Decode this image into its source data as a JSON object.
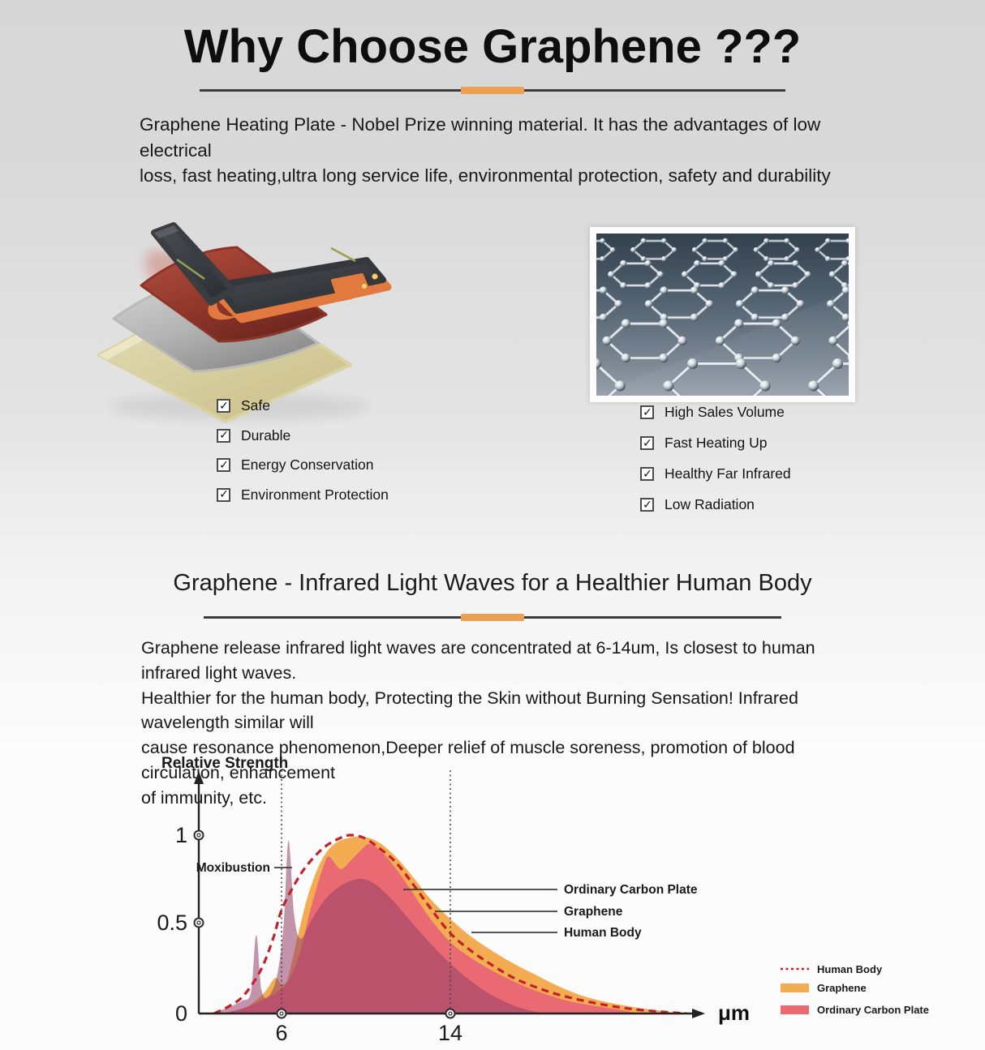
{
  "header": {
    "title": "Why Choose Graphene ???",
    "intro_lines": [
      "Graphene Heating Plate - Nobel Prize winning material.  It has the advantages of low electrical",
      "loss,  fast  heating,ultra long service life, environmental  protection, safety and durability"
    ]
  },
  "icons": {
    "check": "✓"
  },
  "theme": {
    "accent_orange": "#ECA052",
    "divider_dark": "#3C3C3C"
  },
  "features_left": {
    "items": [
      "Safe",
      "Durable",
      "Energy Conservation",
      "Environment Protection"
    ]
  },
  "features_right": {
    "items": [
      "High Sales Volume",
      "Fast Heating Up",
      "Healthy Far Infrared",
      "Low Radiation"
    ]
  },
  "section_infrared": {
    "title": "Graphene - Infrared Light Waves for a Healthier Human Body",
    "body_lines": [
      "Graphene release infrared light waves are concentrated  at 6-14um, Is closest to human infrared light waves.",
      "Healthier for the human body, Protecting the Skin  without Burning Sensation! Infrared wavelength similar will",
      "cause resonance phenomenon,Deeper relief of muscle  soreness, promotion of blood circulation, enhancement",
      "of immunity, etc."
    ]
  },
  "chart_data": {
    "type": "area",
    "ylabel": "Relative Strength",
    "x_unit": "μm",
    "x_ticks": [
      "6",
      "14"
    ],
    "y_ticks": [
      "0",
      "0.5",
      "1"
    ],
    "xlim_um": [
      2,
      26
    ],
    "ylim": [
      0,
      1.3
    ],
    "grid": "dotted guides at x=6 and x=14",
    "labels": {
      "moxibustion": "Moxibustion",
      "carbon": "Ordinary Carbon Plate",
      "graphene": "Graphene",
      "human": "Human Body"
    },
    "series": [
      {
        "key": "graphene",
        "name": "Graphene",
        "color": "#F4AC53",
        "style": "filled-area",
        "points": [
          [
            3.5,
            0
          ],
          [
            4.4,
            0.04
          ],
          [
            5.2,
            0.12
          ],
          [
            5.7,
            0.2
          ],
          [
            6.0,
            0.165
          ],
          [
            6.3,
            0.2
          ],
          [
            6.8,
            0.45
          ],
          [
            7.3,
            0.68
          ],
          [
            7.9,
            0.86
          ],
          [
            8.5,
            0.95
          ],
          [
            9.2,
            0.985
          ],
          [
            9.9,
            0.99
          ],
          [
            10.6,
            0.96
          ],
          [
            11.4,
            0.88
          ],
          [
            12.2,
            0.77
          ],
          [
            13.0,
            0.65
          ],
          [
            14.0,
            0.53
          ],
          [
            15.0,
            0.43
          ],
          [
            16.0,
            0.35
          ],
          [
            17.0,
            0.28
          ],
          [
            18.0,
            0.22
          ],
          [
            19.0,
            0.16
          ],
          [
            20.0,
            0.11
          ],
          [
            21.0,
            0.075
          ],
          [
            22.0,
            0.05
          ],
          [
            23.0,
            0.03
          ],
          [
            24.0,
            0.015
          ],
          [
            24.8,
            0
          ]
        ]
      },
      {
        "key": "carbon",
        "name": "Ordinary Carbon Plate",
        "color": "#E96A72",
        "style": "filled-area",
        "points": [
          [
            3.2,
            0
          ],
          [
            4.2,
            0.03
          ],
          [
            5.0,
            0.07
          ],
          [
            5.8,
            0.12
          ],
          [
            6.4,
            0.2
          ],
          [
            6.9,
            0.35
          ],
          [
            7.3,
            0.55
          ],
          [
            7.7,
            0.72
          ],
          [
            8.0,
            0.83
          ],
          [
            8.25,
            0.88
          ],
          [
            8.8,
            0.81
          ],
          [
            9.3,
            0.86
          ],
          [
            9.8,
            0.92
          ],
          [
            10.2,
            0.95
          ],
          [
            10.8,
            0.9
          ],
          [
            11.5,
            0.8
          ],
          [
            12.2,
            0.68
          ],
          [
            13.0,
            0.54
          ],
          [
            14.0,
            0.4
          ],
          [
            15.0,
            0.31
          ],
          [
            16.0,
            0.24
          ],
          [
            17.0,
            0.18
          ],
          [
            18.0,
            0.13
          ],
          [
            19.0,
            0.09
          ],
          [
            20.0,
            0.06
          ],
          [
            21.0,
            0.04
          ],
          [
            22.0,
            0.022
          ],
          [
            22.9,
            0
          ]
        ]
      },
      {
        "key": "moxibustion",
        "name": "Moxibustion",
        "color": "rgba(148,62,104,0.55)",
        "style": "filled-area",
        "points": [
          [
            2.6,
            0
          ],
          [
            3.4,
            0.03
          ],
          [
            4.1,
            0.07
          ],
          [
            4.55,
            0.12
          ],
          [
            4.8,
            0.44
          ],
          [
            5.05,
            0.13
          ],
          [
            5.4,
            0.1
          ],
          [
            5.8,
            0.22
          ],
          [
            6.1,
            0.5
          ],
          [
            6.33,
            0.97
          ],
          [
            6.6,
            0.55
          ],
          [
            6.9,
            0.42
          ],
          [
            7.4,
            0.52
          ],
          [
            8.0,
            0.63
          ],
          [
            8.6,
            0.7
          ],
          [
            9.2,
            0.74
          ],
          [
            9.8,
            0.755
          ],
          [
            10.5,
            0.72
          ],
          [
            11.3,
            0.63
          ],
          [
            12.1,
            0.52
          ],
          [
            13.0,
            0.4
          ],
          [
            14.0,
            0.28
          ],
          [
            15.0,
            0.18
          ],
          [
            16.0,
            0.1
          ],
          [
            17.0,
            0.045
          ],
          [
            18.0,
            0.01
          ],
          [
            18.5,
            0
          ]
        ]
      },
      {
        "key": "human",
        "name": "Human Body",
        "color": "#C4202A",
        "style": "dashed-line",
        "points": [
          [
            2.8,
            0
          ],
          [
            3.5,
            0.04
          ],
          [
            4.2,
            0.1
          ],
          [
            5.0,
            0.24
          ],
          [
            5.6,
            0.42
          ],
          [
            6.0,
            0.58
          ],
          [
            6.6,
            0.72
          ],
          [
            7.2,
            0.83
          ],
          [
            8.0,
            0.93
          ],
          [
            8.8,
            0.985
          ],
          [
            9.3,
            1.0
          ],
          [
            9.9,
            0.985
          ],
          [
            10.6,
            0.93
          ],
          [
            11.4,
            0.85
          ],
          [
            12.2,
            0.73
          ],
          [
            13.0,
            0.6
          ],
          [
            14.0,
            0.45
          ],
          [
            15.0,
            0.35
          ],
          [
            16.0,
            0.27
          ],
          [
            17.0,
            0.2
          ],
          [
            18.0,
            0.15
          ],
          [
            19.0,
            0.11
          ],
          [
            20.0,
            0.08
          ],
          [
            21.0,
            0.055
          ],
          [
            22.0,
            0.035
          ],
          [
            23.0,
            0.02
          ],
          [
            24.2,
            0.008
          ],
          [
            25.2,
            0
          ]
        ]
      }
    ],
    "legend": [
      {
        "label": "Human Body",
        "swatch": "dashed-line",
        "color": "#C4202A"
      },
      {
        "label": "Graphene",
        "swatch": "rect",
        "color": "#F4AC53"
      },
      {
        "label": "Ordinary Carbon Plate",
        "swatch": "rect",
        "color": "#E96A72"
      }
    ],
    "legend_position": "bottom-right"
  }
}
